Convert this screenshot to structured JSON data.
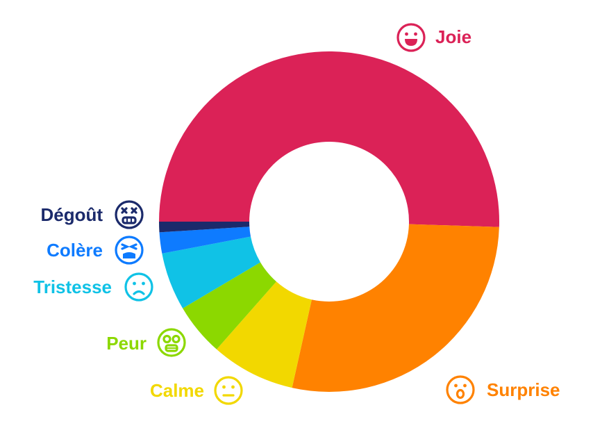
{
  "chart_data": {
    "type": "pie",
    "subtype": "donut",
    "title": "",
    "legend": "none",
    "slices": [
      {
        "label": "Joie",
        "value": 50.5,
        "color": "#DB2257",
        "icon": "happy-face-icon"
      },
      {
        "label": "Surprise",
        "value": 28.0,
        "color": "#FF8200",
        "icon": "surprised-face-icon"
      },
      {
        "label": "Calme",
        "value": 8.0,
        "color": "#F2D800",
        "icon": "neutral-face-icon"
      },
      {
        "label": "Peur",
        "value": 5.0,
        "color": "#8CD800",
        "icon": "scared-face-icon"
      },
      {
        "label": "Tristesse",
        "value": 5.5,
        "color": "#10C2E6",
        "icon": "sad-face-icon"
      },
      {
        "label": "Colère",
        "value": 2.0,
        "color": "#0E7BFF",
        "icon": "angry-face-icon"
      },
      {
        "label": "Dégoût",
        "value": 1.0,
        "color": "#1B2A6B",
        "icon": "disgusted-face-icon"
      }
    ]
  }
}
